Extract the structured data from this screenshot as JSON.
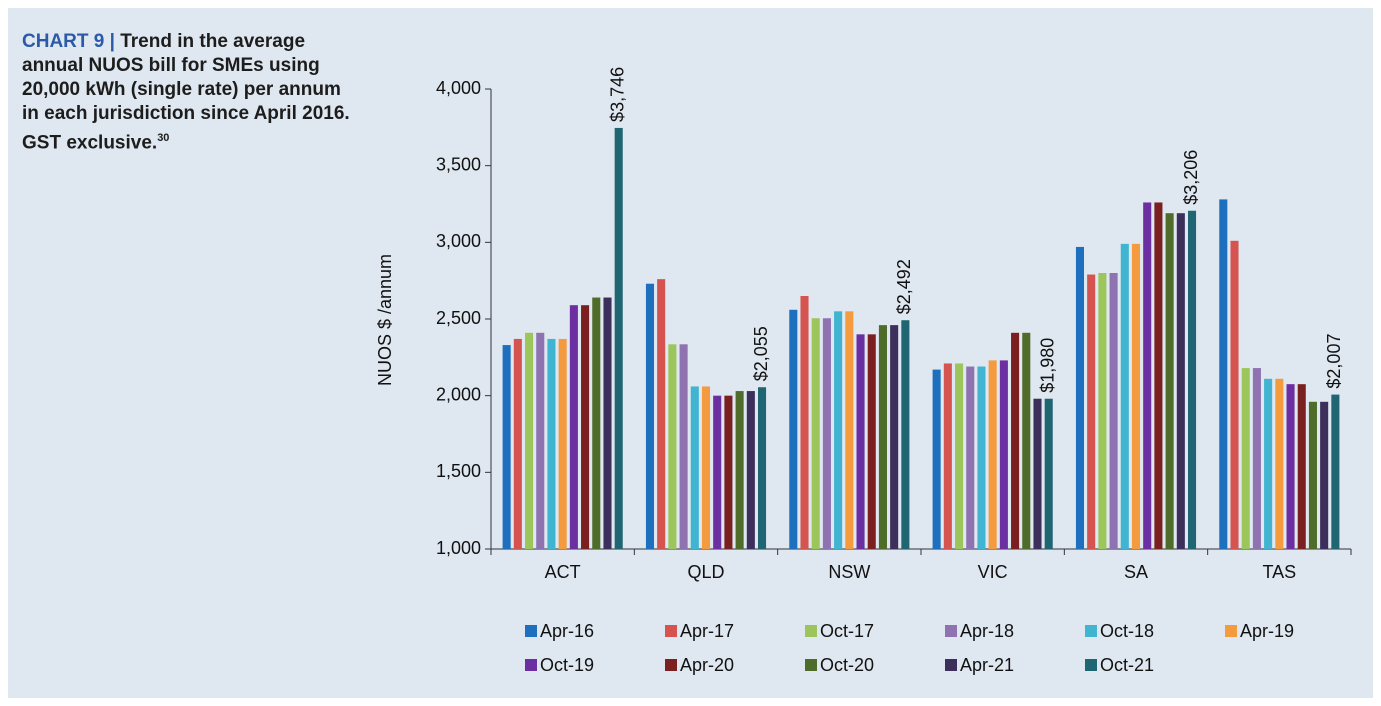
{
  "chart_data": {
    "type": "bar",
    "label": "CHART 9 |",
    "title": "Trend in the average annual NUOS bill for SMEs using 20,000 kWh (single rate) per annum in each jurisdiction since April 2016. GST exclusive.",
    "footnote": "30",
    "y_label": "NUOS $ /annum",
    "categories": [
      "ACT",
      "QLD",
      "NSW",
      "VIC",
      "SA",
      "TAS"
    ],
    "ylim": [
      1000,
      4000
    ],
    "yticks": [
      {
        "value": 1000,
        "label": "1,000"
      },
      {
        "value": 1500,
        "label": "1,500"
      },
      {
        "value": 2000,
        "label": "2,000"
      },
      {
        "value": 2500,
        "label": "2,500"
      },
      {
        "value": 3000,
        "label": "3,000"
      },
      {
        "value": 3500,
        "label": "3,500"
      },
      {
        "value": 4000,
        "label": "4,000"
      }
    ],
    "series": [
      {
        "name": "Apr-16",
        "color": "#1f6fbf",
        "values": [
          2330,
          2730,
          2560,
          2170,
          2970,
          3280
        ]
      },
      {
        "name": "Apr-17",
        "color": "#d65450",
        "values": [
          2370,
          2760,
          2650,
          2210,
          2790,
          3010
        ]
      },
      {
        "name": "Oct-17",
        "color": "#9cc65c",
        "values": [
          2410,
          2335,
          2505,
          2210,
          2800,
          2180
        ]
      },
      {
        "name": "Apr-18",
        "color": "#8f73b1",
        "values": [
          2410,
          2335,
          2505,
          2190,
          2800,
          2180
        ]
      },
      {
        "name": "Oct-18",
        "color": "#40b4d0",
        "values": [
          2370,
          2060,
          2550,
          2190,
          2990,
          2110
        ]
      },
      {
        "name": "Apr-19",
        "color": "#f59b3f",
        "values": [
          2370,
          2060,
          2550,
          2230,
          2990,
          2110
        ]
      },
      {
        "name": "Oct-19",
        "color": "#6b2fa1",
        "values": [
          2590,
          2000,
          2400,
          2230,
          3260,
          2075
        ]
      },
      {
        "name": "Apr-20",
        "color": "#7b2020",
        "values": [
          2590,
          2000,
          2400,
          2410,
          3260,
          2075
        ]
      },
      {
        "name": "Oct-20",
        "color": "#506c2b",
        "values": [
          2640,
          2030,
          2460,
          2410,
          3190,
          1960
        ]
      },
      {
        "name": "Apr-21",
        "color": "#3c2f5b",
        "values": [
          2640,
          2030,
          2460,
          1980,
          3190,
          1960
        ]
      },
      {
        "name": "Oct-21",
        "color": "#1f6572",
        "values": [
          3746,
          2055,
          2492,
          1980,
          3206,
          2007
        ],
        "value_labels": [
          "$3,746",
          "$2,055",
          "$2,492",
          "$1,980",
          "$3,206",
          "$2,007"
        ]
      }
    ]
  }
}
